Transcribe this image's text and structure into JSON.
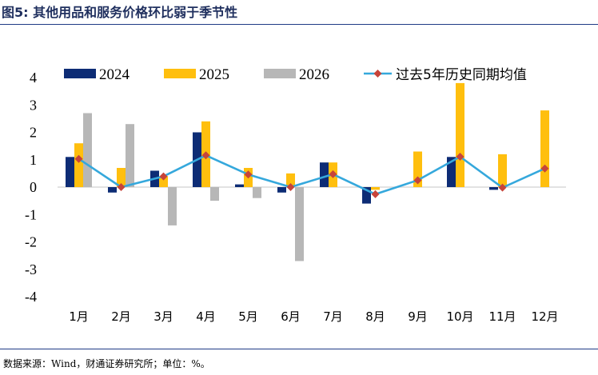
{
  "figure": {
    "title": "图5: 其他用品和服务价格环比弱于季节性",
    "source": "数据来源：Wind，财通证券研究所；单位：%。"
  },
  "chart_data": {
    "type": "bar",
    "categories": [
      "1月",
      "2月",
      "3月",
      "4月",
      "5月",
      "6月",
      "7月",
      "8月",
      "9月",
      "10月",
      "11月",
      "12月"
    ],
    "series": [
      {
        "name": "2024",
        "type": "bar",
        "color": "#0d2c75",
        "values": [
          1.1,
          -0.2,
          0.6,
          2.0,
          0.1,
          -0.2,
          0.9,
          -0.6,
          null,
          1.1,
          -0.1,
          null
        ]
      },
      {
        "name": "2025",
        "type": "bar",
        "color": "#ffbf0e",
        "values": [
          1.6,
          0.7,
          0.4,
          2.4,
          0.7,
          0.5,
          0.9,
          -0.1,
          1.3,
          3.8,
          1.2,
          2.8
        ]
      },
      {
        "name": "2026",
        "type": "bar",
        "color": "#b7b7b7",
        "values": [
          2.7,
          2.3,
          -1.4,
          -0.5,
          -0.4,
          -2.7,
          null,
          null,
          null,
          null,
          null,
          null
        ]
      },
      {
        "name": "过去5年历史同期均值",
        "type": "line",
        "color": "#35a8dc",
        "marker_color": "#c7443a",
        "values": [
          1.03,
          0.0,
          0.39,
          1.16,
          0.46,
          0.0,
          0.47,
          -0.26,
          0.25,
          1.11,
          -0.02,
          0.68
        ]
      }
    ],
    "ylim": [
      -4,
      4
    ],
    "yticks": [
      "4",
      "3",
      "2",
      "1",
      "0",
      "-1",
      "-2",
      "-3",
      "-4"
    ],
    "legend_position": "top",
    "grid": false
  }
}
